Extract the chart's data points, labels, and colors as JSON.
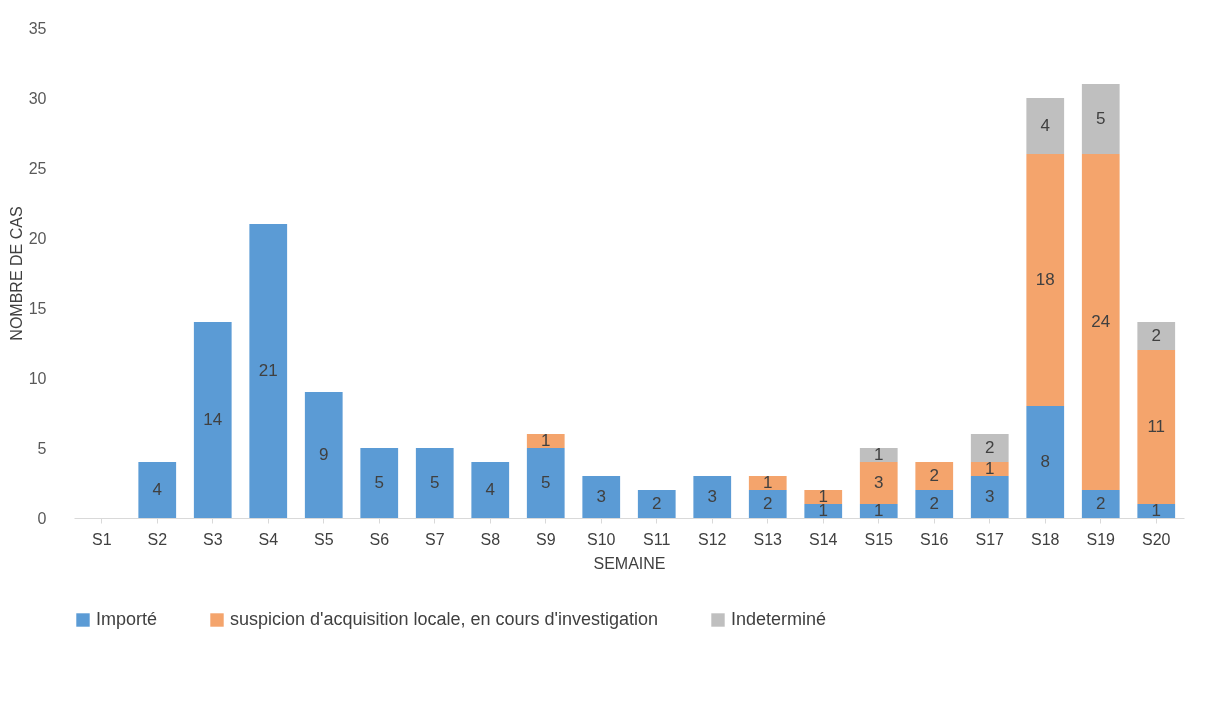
{
  "chart_data": {
    "type": "bar",
    "xlabel": "SEMAINE",
    "ylabel": "NOMBRE DE CAS",
    "stacked": true,
    "data_labels": true,
    "legend": "bottom",
    "grid": false,
    "categories": [
      "S1",
      "S2",
      "S3",
      "S4",
      "S5",
      "S6",
      "S7",
      "S8",
      "S9",
      "S10",
      "S11",
      "S12",
      "S13",
      "S14",
      "S15",
      "S16",
      "S17",
      "S18",
      "S19",
      "S20"
    ],
    "ylim": [
      0,
      35
    ],
    "yticks": [
      0,
      5,
      10,
      15,
      20,
      25,
      30,
      35
    ],
    "series": [
      {
        "name": "Importé",
        "color": "#5b9bd5",
        "values": [
          null,
          4,
          14,
          21,
          9,
          5,
          5,
          4,
          5,
          3,
          2,
          3,
          2,
          1,
          1,
          2,
          3,
          8,
          2,
          1
        ]
      },
      {
        "name": "suspicion d'acquisition locale, en cours d'investigation",
        "color": "#f4a46c",
        "values": [
          null,
          null,
          null,
          null,
          null,
          null,
          null,
          null,
          1,
          null,
          null,
          null,
          1,
          1,
          3,
          2,
          1,
          18,
          24,
          11
        ]
      },
      {
        "name": "Indeterminé",
        "color": "#bfbfbf",
        "values": [
          null,
          null,
          null,
          null,
          null,
          null,
          null,
          null,
          null,
          null,
          null,
          null,
          null,
          null,
          1,
          null,
          2,
          4,
          5,
          2
        ]
      }
    ]
  }
}
